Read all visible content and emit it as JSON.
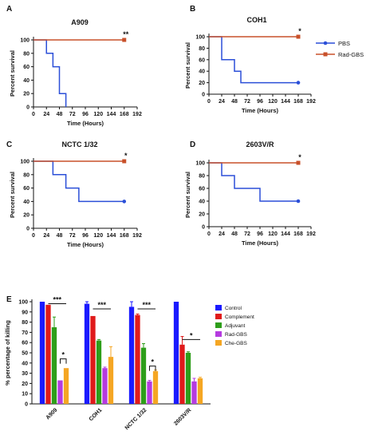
{
  "colors": {
    "pbs": "#2b4fd8",
    "rad": "#c8502a",
    "control": "#1a1aff",
    "complement": "#e01a1a",
    "adjuvant": "#2e9e1a",
    "radgbs": "#b53be0",
    "chegbs": "#f5a623",
    "axis": "#111111"
  },
  "chart_data": [
    {
      "type": "line",
      "panel": "A",
      "title": "A909",
      "xlabel": "Time (Hours)",
      "ylabel": "Percent survival",
      "xlim": [
        0,
        192
      ],
      "ylim": [
        0,
        100
      ],
      "xticks": [
        "0",
        "24",
        "48",
        "72",
        "96",
        "120",
        "144",
        "168",
        "192"
      ],
      "yticks": [
        "0",
        "20",
        "40",
        "60",
        "80",
        "100"
      ],
      "significance": "**",
      "series": [
        {
          "key": "pbs",
          "x": [
            0,
            24,
            24,
            36,
            36,
            48,
            48,
            60,
            60
          ],
          "y": [
            100,
            100,
            80,
            80,
            60,
            60,
            20,
            20,
            0
          ]
        },
        {
          "key": "rad",
          "x": [
            0,
            168
          ],
          "y": [
            100,
            100
          ]
        }
      ]
    },
    {
      "type": "line",
      "panel": "B",
      "title": "COH1",
      "xlabel": "Time (Hours)",
      "ylabel": "Percent survival",
      "xlim": [
        0,
        192
      ],
      "ylim": [
        0,
        100
      ],
      "xticks": [
        "0",
        "24",
        "48",
        "72",
        "96",
        "120",
        "144",
        "168",
        "192"
      ],
      "yticks": [
        "0",
        "20",
        "40",
        "60",
        "80",
        "100"
      ],
      "significance": "*",
      "legend": {
        "placement": "right",
        "entries": [
          {
            "name": "PBS",
            "key": "pbs"
          },
          {
            "name": "Rad-GBS",
            "key": "rad"
          }
        ]
      },
      "series": [
        {
          "key": "pbs",
          "x": [
            0,
            24,
            24,
            48,
            48,
            60,
            60,
            168
          ],
          "y": [
            100,
            100,
            60,
            60,
            40,
            40,
            20,
            20
          ]
        },
        {
          "key": "rad",
          "x": [
            0,
            168
          ],
          "y": [
            100,
            100
          ]
        }
      ]
    },
    {
      "type": "line",
      "panel": "C",
      "title": "NCTC 1/32",
      "xlabel": "Time (Hours)",
      "ylabel": "Percent survival",
      "xlim": [
        0,
        192
      ],
      "ylim": [
        0,
        100
      ],
      "xticks": [
        "0",
        "24",
        "48",
        "72",
        "96",
        "120",
        "144",
        "168",
        "192"
      ],
      "yticks": [
        "0",
        "20",
        "40",
        "60",
        "80",
        "100"
      ],
      "significance": "*",
      "series": [
        {
          "key": "pbs",
          "x": [
            0,
            36,
            36,
            60,
            60,
            84,
            84,
            168
          ],
          "y": [
            100,
            100,
            80,
            80,
            60,
            60,
            40,
            40
          ]
        },
        {
          "key": "rad",
          "x": [
            0,
            168
          ],
          "y": [
            100,
            100
          ]
        }
      ]
    },
    {
      "type": "line",
      "panel": "D",
      "title": "2603V/R",
      "xlabel": "Time (Hours)",
      "ylabel": "Percent survival",
      "xlim": [
        0,
        192
      ],
      "ylim": [
        0,
        100
      ],
      "xticks": [
        "0",
        "24",
        "48",
        "72",
        "96",
        "120",
        "144",
        "168",
        "192"
      ],
      "yticks": [
        "0",
        "20",
        "40",
        "60",
        "80",
        "100"
      ],
      "significance": "*",
      "series": [
        {
          "key": "pbs",
          "x": [
            0,
            24,
            24,
            48,
            48,
            96,
            96,
            168
          ],
          "y": [
            100,
            100,
            80,
            80,
            60,
            60,
            40,
            40
          ]
        },
        {
          "key": "rad",
          "x": [
            0,
            168
          ],
          "y": [
            100,
            100
          ]
        }
      ]
    },
    {
      "type": "bar",
      "panel": "E",
      "ylabel": "% percentage of killing",
      "ylim": [
        0,
        100
      ],
      "yticks": [
        "0",
        "10",
        "20",
        "30",
        "40",
        "50",
        "60",
        "70",
        "80",
        "90",
        "100"
      ],
      "categories": [
        "A909",
        "COH1",
        "NCTC 1/32",
        "2603V/R"
      ],
      "legend": {
        "placement": "top-right"
      },
      "series": [
        {
          "name": "Control",
          "key": "control",
          "values": [
            100,
            98,
            95,
            100
          ],
          "errors": [
            0,
            2,
            5,
            0
          ]
        },
        {
          "name": "Complement",
          "key": "complement",
          "values": [
            97,
            86,
            87,
            58
          ],
          "errors": [
            0,
            0,
            1,
            8
          ]
        },
        {
          "name": "Adjuvant",
          "key": "adjuvant",
          "values": [
            75,
            62,
            55,
            50
          ],
          "errors": [
            10,
            1,
            4,
            1
          ]
        },
        {
          "name": "Rad-GBS",
          "key": "radgbs",
          "values": [
            23,
            35,
            22,
            22
          ],
          "errors": [
            0,
            1,
            1,
            3
          ]
        },
        {
          "name": "Che-GBS",
          "key": "chegbs",
          "values": [
            35,
            46,
            32,
            25
          ],
          "errors": [
            0,
            10,
            1,
            1
          ]
        }
      ],
      "significance": [
        {
          "label": "***",
          "category": 0,
          "from": 1,
          "to": 4,
          "y": 98
        },
        {
          "label": "*",
          "category": 0,
          "from": 3,
          "to": 4,
          "y": 44,
          "bracket": true
        },
        {
          "label": "***",
          "category": 1,
          "from": 1,
          "to": 4,
          "y": 93
        },
        {
          "label": "***",
          "category": 2,
          "from": 1,
          "to": 4,
          "y": 93
        },
        {
          "label": "*",
          "category": 2,
          "from": 3,
          "to": 4,
          "y": 37,
          "bracket": true
        },
        {
          "label": "*",
          "category": 3,
          "from": 1,
          "to": 4,
          "y": 63
        }
      ]
    }
  ]
}
